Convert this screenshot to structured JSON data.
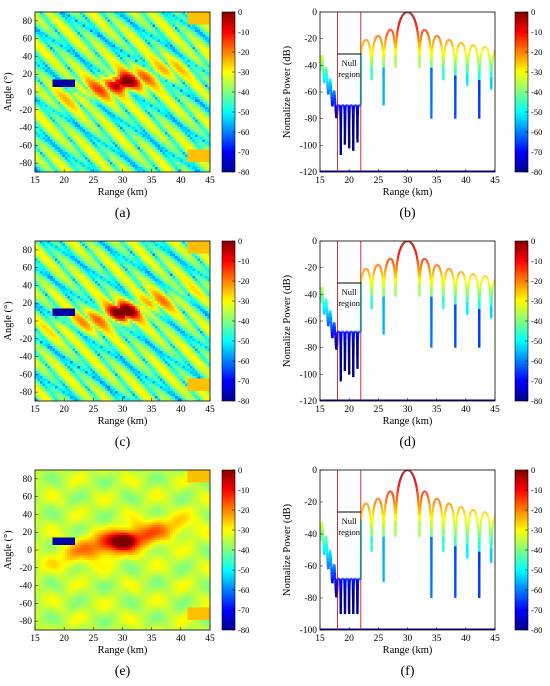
{
  "colormap": [
    "#00008f",
    "#0000ff",
    "#0080ff",
    "#00ffff",
    "#80ff80",
    "#ffff00",
    "#ff8000",
    "#ff0000",
    "#800000"
  ],
  "chart_data": [
    {
      "id": "a",
      "type": "heatmap",
      "label": "(a)",
      "xlabel": "Range (km)",
      "ylabel": "Angle (°)",
      "xlim": [
        15,
        45
      ],
      "ylim": [
        -90,
        90
      ],
      "xticks": [
        "15",
        "20",
        "25",
        "30",
        "35",
        "40",
        "45"
      ],
      "yticks": [
        "-80",
        "-60",
        "-40",
        "-20",
        "0",
        "20",
        "40",
        "60",
        "80"
      ],
      "colorbar": {
        "range": [
          -80,
          0
        ],
        "ticks": [
          "0",
          "-10",
          "-20",
          "-30",
          "-40",
          "-50",
          "-60",
          "-70",
          "-80"
        ]
      },
      "mainlobe": {
        "range_km": 30,
        "angle_deg": 10
      },
      "null_region": {
        "range_km": [
          18,
          22
        ],
        "angle_deg": 10
      }
    },
    {
      "id": "b",
      "type": "line",
      "label": "(b)",
      "xlabel": "Range (km)",
      "ylabel": "Nomalize Power (dB)",
      "xlim": [
        15,
        45
      ],
      "ylim": [
        -120,
        0
      ],
      "xticks": [
        "15",
        "20",
        "25",
        "30",
        "35",
        "40",
        "45"
      ],
      "yticks": [
        "0",
        "-20",
        "-40",
        "-60",
        "-80",
        "-100",
        "-120"
      ],
      "colorbar": {
        "range": [
          -80,
          0
        ],
        "ticks": [
          "0",
          "-10",
          "-20",
          "-30",
          "-40",
          "-50",
          "-60",
          "-70",
          "-80"
        ]
      },
      "annotation": [
        "Null",
        "region"
      ],
      "null_region": [
        18,
        22
      ],
      "peak": {
        "x": 30,
        "y": 0
      },
      "null_floor_db": -68,
      "sidelobe_peaks_db": [
        -13,
        -17,
        -20,
        -22,
        -24,
        -26
      ],
      "left_edge_db": -30,
      "right_edge_db": -33,
      "deep_null_db": -117
    },
    {
      "id": "c",
      "type": "heatmap",
      "label": "(c)",
      "xlabel": "Range (km)",
      "ylabel": "Angle (°)",
      "xlim": [
        15,
        45
      ],
      "ylim": [
        -90,
        90
      ],
      "xticks": [
        "15",
        "20",
        "25",
        "30",
        "35",
        "40",
        "45"
      ],
      "yticks": [
        "-80",
        "-60",
        "-40",
        "-20",
        "0",
        "20",
        "40",
        "60",
        "80"
      ],
      "colorbar": {
        "range": [
          -80,
          0
        ],
        "ticks": [
          "0",
          "-10",
          "-20",
          "-30",
          "-40",
          "-50",
          "-60",
          "-70",
          "-80"
        ]
      },
      "mainlobe": {
        "range_km": 30,
        "angle_deg": 10
      },
      "null_region": {
        "range_km": [
          18,
          22
        ],
        "angle_deg": 10
      }
    },
    {
      "id": "d",
      "type": "line",
      "label": "(d)",
      "xlabel": "Range (km)",
      "ylabel": "Nomalize Power (dB)",
      "xlim": [
        15,
        45
      ],
      "ylim": [
        -120,
        0
      ],
      "xticks": [
        "15",
        "20",
        "25",
        "30",
        "35",
        "40",
        "45"
      ],
      "yticks": [
        "0",
        "-20",
        "-40",
        "-60",
        "-80",
        "-100",
        "-120"
      ],
      "colorbar": {
        "range": [
          -80,
          0
        ],
        "ticks": [
          "0",
          "-10",
          "-20",
          "-30",
          "-40",
          "-50",
          "-60",
          "-70",
          "-80"
        ]
      },
      "annotation": [
        "Null",
        "region"
      ],
      "null_region": [
        18,
        22
      ],
      "peak": {
        "x": 30,
        "y": 0
      },
      "null_floor_db": -66,
      "sidelobe_peaks_db": [
        -13,
        -17,
        -20,
        -22,
        -24,
        -26
      ],
      "left_edge_db": -32,
      "right_edge_db": -33,
      "deep_null_db": -112
    },
    {
      "id": "e",
      "type": "heatmap",
      "label": "(e)",
      "xlabel": "Range (km)",
      "ylabel": "Angle (°)",
      "xlim": [
        15,
        45
      ],
      "ylim": [
        -90,
        90
      ],
      "xticks": [
        "15",
        "20",
        "25",
        "30",
        "35",
        "40",
        "45"
      ],
      "yticks": [
        "-80",
        "-60",
        "-40",
        "-20",
        "0",
        "20",
        "40",
        "60",
        "80"
      ],
      "colorbar": {
        "range": [
          -80,
          0
        ],
        "ticks": [
          "0",
          "-10",
          "-20",
          "-30",
          "-40",
          "-50",
          "-60",
          "-70",
          "-80"
        ]
      },
      "mainlobe": {
        "range_km": 30,
        "angle_deg": 10
      },
      "null_region": {
        "range_km": [
          18,
          22
        ],
        "angle_deg": 10
      }
    },
    {
      "id": "f",
      "type": "line",
      "label": "(f)",
      "xlabel": "Range (km)",
      "ylabel": "Nomalize Power (dB)",
      "xlim": [
        15,
        45
      ],
      "ylim": [
        -100,
        0
      ],
      "xticks": [
        "15",
        "20",
        "25",
        "30",
        "35",
        "40",
        "45"
      ],
      "yticks": [
        "0",
        "-20",
        "-40",
        "-60",
        "-80",
        "-100"
      ],
      "colorbar": {
        "range": [
          -80,
          0
        ],
        "ticks": [
          "0",
          "-10",
          "-20",
          "-30",
          "-40",
          "-50",
          "-60",
          "-70",
          "-80"
        ]
      },
      "annotation": [
        "Null",
        "region"
      ],
      "null_region": [
        18,
        22
      ],
      "peak": {
        "x": 30,
        "y": 0
      },
      "null_floor_db": -66,
      "sidelobe_peaks_db": [
        -13,
        -17,
        -20,
        -22,
        -24,
        -26
      ],
      "left_edge_db": -30,
      "right_edge_db": -33,
      "deep_null_db": -90
    }
  ]
}
